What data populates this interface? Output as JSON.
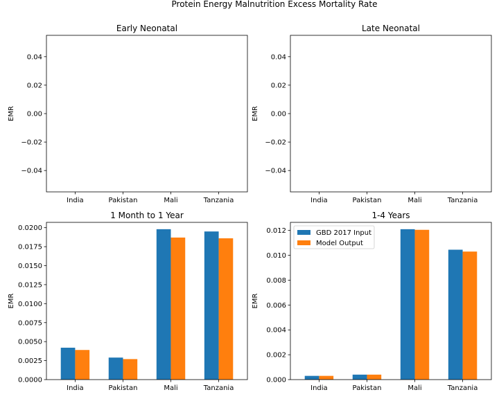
{
  "figure": {
    "title": "Protein Energy Malnutrition Excess Mortality Rate"
  },
  "colors": {
    "series_0": "#1f77b4",
    "series_1": "#ff7f0e"
  },
  "chart_data": [
    {
      "type": "bar",
      "title": "Early Neonatal",
      "ylabel": "EMR",
      "categories": [
        "India",
        "Pakistan",
        "Mali",
        "Tanzania"
      ],
      "ylim": [
        -0.055,
        0.055
      ],
      "yticks": [
        -0.04,
        -0.02,
        0.0,
        0.02,
        0.04
      ],
      "ytick_labels": [
        "−0.04",
        "−0.02",
        "0.00",
        "0.02",
        "0.04"
      ],
      "series": [
        {
          "values": [
            0,
            0,
            0,
            0
          ]
        },
        {
          "values": [
            0,
            0,
            0,
            0
          ]
        }
      ],
      "legend": null
    },
    {
      "type": "bar",
      "title": "Late Neonatal",
      "ylabel": "EMR",
      "categories": [
        "India",
        "Pakistan",
        "Mali",
        "Tanzania"
      ],
      "ylim": [
        -0.055,
        0.055
      ],
      "yticks": [
        -0.04,
        -0.02,
        0.0,
        0.02,
        0.04
      ],
      "ytick_labels": [
        "−0.04",
        "−0.02",
        "0.00",
        "0.02",
        "0.04"
      ],
      "series": [
        {
          "values": [
            0,
            0,
            0,
            0
          ]
        },
        {
          "values": [
            0,
            0,
            0,
            0
          ]
        }
      ],
      "legend": null
    },
    {
      "type": "bar",
      "title": "1 Month to 1 Year",
      "ylabel": "EMR",
      "categories": [
        "India",
        "Pakistan",
        "Mali",
        "Tanzania"
      ],
      "ylim": [
        0,
        0.0207
      ],
      "yticks": [
        0,
        0.0025,
        0.005,
        0.0075,
        0.01,
        0.0125,
        0.015,
        0.0175,
        0.02
      ],
      "ytick_labels": [
        "0.0000",
        "0.0025",
        "0.0050",
        "0.0075",
        "0.0100",
        "0.0125",
        "0.0150",
        "0.0175",
        "0.0200"
      ],
      "series": [
        {
          "values": [
            0.0042,
            0.0029,
            0.0198,
            0.0195
          ]
        },
        {
          "values": [
            0.0039,
            0.0027,
            0.0187,
            0.0186
          ]
        }
      ],
      "legend": null
    },
    {
      "type": "bar",
      "title": "1-4 Years",
      "ylabel": "EMR",
      "categories": [
        "India",
        "Pakistan",
        "Mali",
        "Tanzania"
      ],
      "ylim": [
        0,
        0.01265
      ],
      "yticks": [
        0,
        0.002,
        0.004,
        0.006,
        0.008,
        0.01,
        0.012
      ],
      "ytick_labels": [
        "0.000",
        "0.002",
        "0.004",
        "0.006",
        "0.008",
        "0.010",
        "0.012"
      ],
      "series": [
        {
          "name": "GBD 2017 Input",
          "values": [
            0.0003,
            0.0004,
            0.0121,
            0.01045
          ]
        },
        {
          "name": "Model Output",
          "values": [
            0.0003,
            0.0004,
            0.01205,
            0.0103
          ]
        }
      ],
      "legend": "upper-left"
    }
  ]
}
